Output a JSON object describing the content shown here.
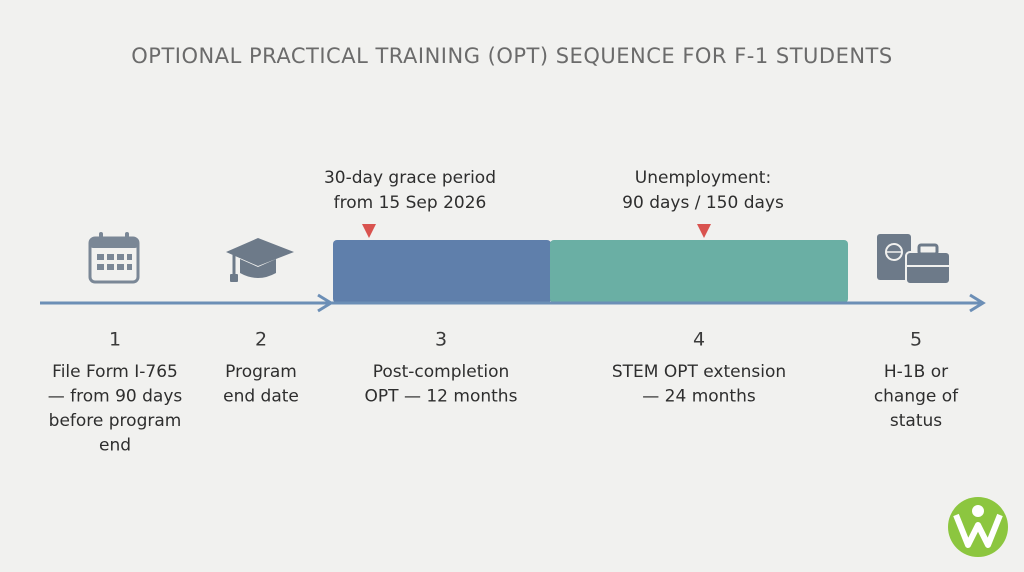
{
  "title": "OPTIONAL PRACTICAL TRAINING (OPT) SEQUENCE FOR F-1 STUDENTS",
  "annotations": [
    {
      "lines": [
        "30-day grace period",
        "from 15 Sep 2026"
      ]
    },
    {
      "lines": [
        "Unemployment:",
        "90 days / 150 days"
      ]
    }
  ],
  "steps": [
    {
      "number": 1,
      "lines": [
        "File Form I-765",
        "— from 90 days",
        "before program",
        "end"
      ]
    },
    {
      "number": 2,
      "lines": [
        "Program",
        "end date"
      ]
    },
    {
      "number": 3,
      "lines": [
        "Post-completion",
        "OPT — 12 months"
      ]
    },
    {
      "number": 4,
      "lines": [
        "STEM OPT extension",
        "— 24 months"
      ]
    },
    {
      "number": 5,
      "lines": [
        "H-1B or",
        "change of",
        "status"
      ]
    }
  ]
}
